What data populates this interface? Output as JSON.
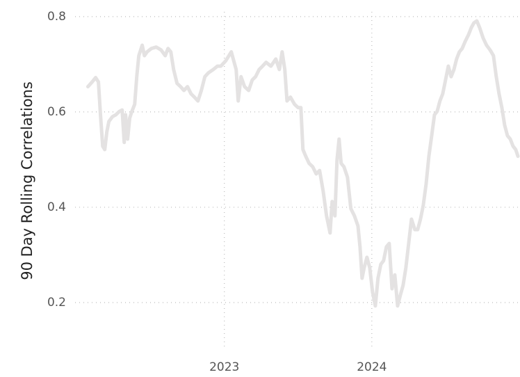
{
  "chart_data": {
    "type": "line",
    "y_label": "90 Day Rolling Correlations",
    "x": [
      2022.075,
      2022.104,
      2022.127,
      2022.146,
      2022.16,
      2022.175,
      2022.189,
      2022.203,
      2022.217,
      2022.241,
      2022.264,
      2022.288,
      2022.307,
      2022.321,
      2022.33,
      2022.344,
      2022.358,
      2022.373,
      2022.392,
      2022.406,
      2022.42,
      2022.443,
      2022.458,
      2022.476,
      2022.505,
      2022.538,
      2022.571,
      2022.599,
      2022.618,
      2022.637,
      2022.656,
      2022.679,
      2022.703,
      2022.726,
      2022.75,
      2022.774,
      2022.797,
      2022.821,
      2022.844,
      2022.868,
      2022.892,
      2022.925,
      2022.953,
      2022.976,
      2023.009,
      2023.047,
      2023.08,
      2023.094,
      2023.113,
      2023.137,
      2023.165,
      2023.189,
      2023.212,
      2023.236,
      2023.259,
      2023.283,
      2023.316,
      2023.349,
      2023.373,
      2023.392,
      2023.41,
      2023.425,
      2023.448,
      2023.476,
      2023.5,
      2023.519,
      2023.533,
      2023.552,
      2023.575,
      2023.599,
      2023.623,
      2023.646,
      2023.67,
      2023.693,
      2023.717,
      2023.731,
      2023.75,
      2023.764,
      2023.778,
      2023.792,
      2023.811,
      2023.835,
      2023.858,
      2023.882,
      2023.906,
      2023.92,
      2023.934,
      2023.948,
      2023.967,
      2023.986,
      2024.005,
      2024.024,
      2024.042,
      2024.061,
      2024.08,
      2024.099,
      2024.118,
      2024.137,
      2024.156,
      2024.175,
      2024.193,
      2024.212,
      2024.231,
      2024.25,
      2024.269,
      2024.292,
      2024.311,
      2024.33,
      2024.349,
      2024.368,
      2024.387,
      2024.406,
      2024.425,
      2024.443,
      2024.462,
      2024.481,
      2024.5,
      2024.519,
      2024.538,
      2024.557,
      2024.575,
      2024.594,
      2024.613,
      2024.632,
      2024.656,
      2024.675,
      2024.693,
      2024.712,
      2024.731,
      2024.755,
      2024.778,
      2024.802,
      2024.825,
      2024.844,
      2024.863,
      2024.882,
      2024.901,
      2024.92,
      2024.939,
      2024.958,
      2024.976,
      2024.991
    ],
    "values": [
      0.653,
      0.663,
      0.672,
      0.663,
      0.594,
      0.528,
      0.521,
      0.558,
      0.58,
      0.59,
      0.594,
      0.601,
      0.604,
      0.536,
      0.594,
      0.543,
      0.587,
      0.601,
      0.616,
      0.674,
      0.718,
      0.74,
      0.718,
      0.726,
      0.733,
      0.736,
      0.73,
      0.718,
      0.733,
      0.726,
      0.689,
      0.66,
      0.653,
      0.645,
      0.653,
      0.638,
      0.631,
      0.623,
      0.645,
      0.674,
      0.682,
      0.689,
      0.696,
      0.696,
      0.707,
      0.726,
      0.689,
      0.623,
      0.674,
      0.653,
      0.645,
      0.667,
      0.674,
      0.689,
      0.696,
      0.704,
      0.696,
      0.711,
      0.689,
      0.726,
      0.689,
      0.623,
      0.631,
      0.616,
      0.609,
      0.609,
      0.521,
      0.507,
      0.492,
      0.485,
      0.47,
      0.477,
      0.434,
      0.382,
      0.346,
      0.412,
      0.382,
      0.499,
      0.543,
      0.492,
      0.485,
      0.463,
      0.397,
      0.382,
      0.361,
      0.317,
      0.251,
      0.273,
      0.295,
      0.273,
      0.222,
      0.193,
      0.251,
      0.28,
      0.288,
      0.317,
      0.324,
      0.229,
      0.258,
      0.193,
      0.215,
      0.236,
      0.273,
      0.324,
      0.375,
      0.353,
      0.353,
      0.375,
      0.404,
      0.448,
      0.507,
      0.55,
      0.594,
      0.601,
      0.623,
      0.638,
      0.667,
      0.696,
      0.674,
      0.689,
      0.711,
      0.726,
      0.733,
      0.747,
      0.762,
      0.777,
      0.787,
      0.791,
      0.777,
      0.755,
      0.74,
      0.73,
      0.718,
      0.674,
      0.638,
      0.609,
      0.572,
      0.55,
      0.543,
      0.528,
      0.521,
      0.507
    ],
    "color": "#e4e2e2",
    "xlim": [
      2021.95,
      2025.005
    ],
    "xticks": [
      2023,
      2024
    ],
    "ylim": [
      0.1,
      0.81
    ],
    "yticks": [
      0.2,
      0.4,
      0.6,
      0.8
    ],
    "grid": true
  }
}
